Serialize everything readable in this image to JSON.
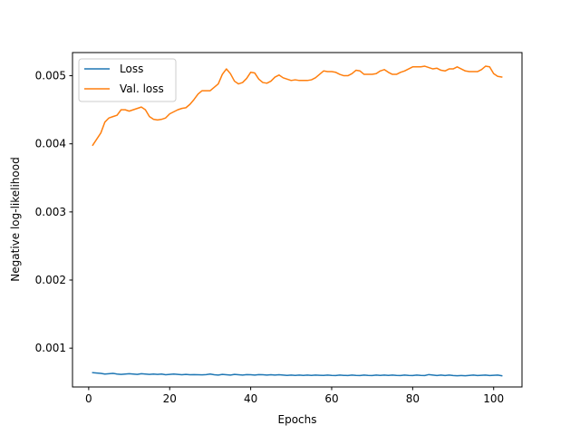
{
  "chart_data": {
    "type": "line",
    "title": "",
    "xlabel": "Epochs",
    "ylabel": "Negative log-likelihood",
    "xlim": [
      -4,
      107
    ],
    "ylim": [
      0.00043,
      0.00534
    ],
    "xticks": [
      0,
      20,
      40,
      60,
      80,
      100
    ],
    "yticks": [
      0.001,
      0.002,
      0.003,
      0.004,
      0.005
    ],
    "grid": false,
    "legend_position": "top-left",
    "series": [
      {
        "name": "Loss",
        "color": "#1f77b4",
        "x": [
          1,
          2,
          3,
          4,
          5,
          6,
          7,
          8,
          9,
          10,
          11,
          12,
          13,
          14,
          15,
          16,
          17,
          18,
          19,
          20,
          21,
          22,
          23,
          24,
          25,
          26,
          27,
          28,
          29,
          30,
          31,
          32,
          33,
          34,
          35,
          36,
          37,
          38,
          39,
          40,
          41,
          42,
          43,
          44,
          45,
          46,
          47,
          48,
          49,
          50,
          51,
          52,
          53,
          54,
          55,
          56,
          57,
          58,
          59,
          60,
          61,
          62,
          63,
          64,
          65,
          66,
          67,
          68,
          69,
          70,
          71,
          72,
          73,
          74,
          75,
          76,
          77,
          78,
          79,
          80,
          81,
          82,
          83,
          84,
          85,
          86,
          87,
          88,
          89,
          90,
          91,
          92,
          93,
          94,
          95,
          96,
          97,
          98,
          99,
          100,
          101,
          102
        ],
        "y": [
          0.00064,
          0.000635,
          0.00063,
          0.00062,
          0.000625,
          0.00063,
          0.00062,
          0.000615,
          0.00062,
          0.000625,
          0.00062,
          0.000615,
          0.000625,
          0.00062,
          0.000615,
          0.00062,
          0.000615,
          0.00062,
          0.00061,
          0.000615,
          0.00062,
          0.000615,
          0.00061,
          0.000615,
          0.00061,
          0.000612,
          0.00061,
          0.000608,
          0.000612,
          0.00062,
          0.00061,
          0.000605,
          0.000615,
          0.00061,
          0.000605,
          0.000615,
          0.00061,
          0.000605,
          0.000612,
          0.00061,
          0.000605,
          0.000612,
          0.00061,
          0.000605,
          0.00061,
          0.000605,
          0.00061,
          0.000605,
          0.0006,
          0.000605,
          0.0006,
          0.000605,
          0.0006,
          0.000605,
          0.0006,
          0.000605,
          0.000602,
          0.0006,
          0.000605,
          0.0006,
          0.000598,
          0.000605,
          0.0006,
          0.000598,
          0.000605,
          0.0006,
          0.000598,
          0.000605,
          0.0006,
          0.000598,
          0.000605,
          0.0006,
          0.000605,
          0.0006,
          0.000605,
          0.0006,
          0.000598,
          0.000605,
          0.0006,
          0.000598,
          0.000605,
          0.0006,
          0.000598,
          0.000612,
          0.000605,
          0.000598,
          0.000605,
          0.000598,
          0.000605,
          0.000598,
          0.000595,
          0.000598,
          0.000595,
          0.0006,
          0.000605,
          0.000598,
          0.000602,
          0.000605,
          0.000598,
          0.000602,
          0.000605,
          0.000595
        ]
      },
      {
        "name": "Val. loss",
        "color": "#ff7f0e",
        "x": [
          1,
          2,
          3,
          4,
          5,
          6,
          7,
          8,
          9,
          10,
          11,
          12,
          13,
          14,
          15,
          16,
          17,
          18,
          19,
          20,
          21,
          22,
          23,
          24,
          25,
          26,
          27,
          28,
          29,
          30,
          31,
          32,
          33,
          34,
          35,
          36,
          37,
          38,
          39,
          40,
          41,
          42,
          43,
          44,
          45,
          46,
          47,
          48,
          49,
          50,
          51,
          52,
          53,
          54,
          55,
          56,
          57,
          58,
          59,
          60,
          61,
          62,
          63,
          64,
          65,
          66,
          67,
          68,
          69,
          70,
          71,
          72,
          73,
          74,
          75,
          76,
          77,
          78,
          79,
          80,
          81,
          82,
          83,
          84,
          85,
          86,
          87,
          88,
          89,
          90,
          91,
          92,
          93,
          94,
          95,
          96,
          97,
          98,
          99,
          100,
          101,
          102
        ],
        "y": [
          0.00398,
          0.00407,
          0.00416,
          0.00432,
          0.00438,
          0.0044,
          0.00442,
          0.0045,
          0.0045,
          0.00448,
          0.0045,
          0.00452,
          0.00454,
          0.0045,
          0.0044,
          0.00436,
          0.00435,
          0.00436,
          0.00438,
          0.00444,
          0.00447,
          0.0045,
          0.00452,
          0.00453,
          0.00458,
          0.00465,
          0.00473,
          0.00478,
          0.00478,
          0.00478,
          0.00483,
          0.00488,
          0.00502,
          0.0051,
          0.00503,
          0.00492,
          0.00488,
          0.0049,
          0.00496,
          0.00505,
          0.00504,
          0.00495,
          0.0049,
          0.00489,
          0.00492,
          0.00498,
          0.00501,
          0.00497,
          0.00495,
          0.00493,
          0.00494,
          0.00493,
          0.00493,
          0.00493,
          0.00494,
          0.00497,
          0.00502,
          0.00507,
          0.00506,
          0.00506,
          0.00505,
          0.00502,
          0.005,
          0.005,
          0.00503,
          0.00508,
          0.00507,
          0.00502,
          0.00502,
          0.00502,
          0.00503,
          0.00507,
          0.00509,
          0.00505,
          0.00502,
          0.00502,
          0.00505,
          0.00507,
          0.0051,
          0.00513,
          0.00513,
          0.00513,
          0.00514,
          0.00512,
          0.0051,
          0.00511,
          0.00508,
          0.00507,
          0.0051,
          0.0051,
          0.00513,
          0.0051,
          0.00507,
          0.00506,
          0.00506,
          0.00506,
          0.00509,
          0.00514,
          0.00513,
          0.00503,
          0.00499,
          0.00498
        ]
      }
    ]
  }
}
